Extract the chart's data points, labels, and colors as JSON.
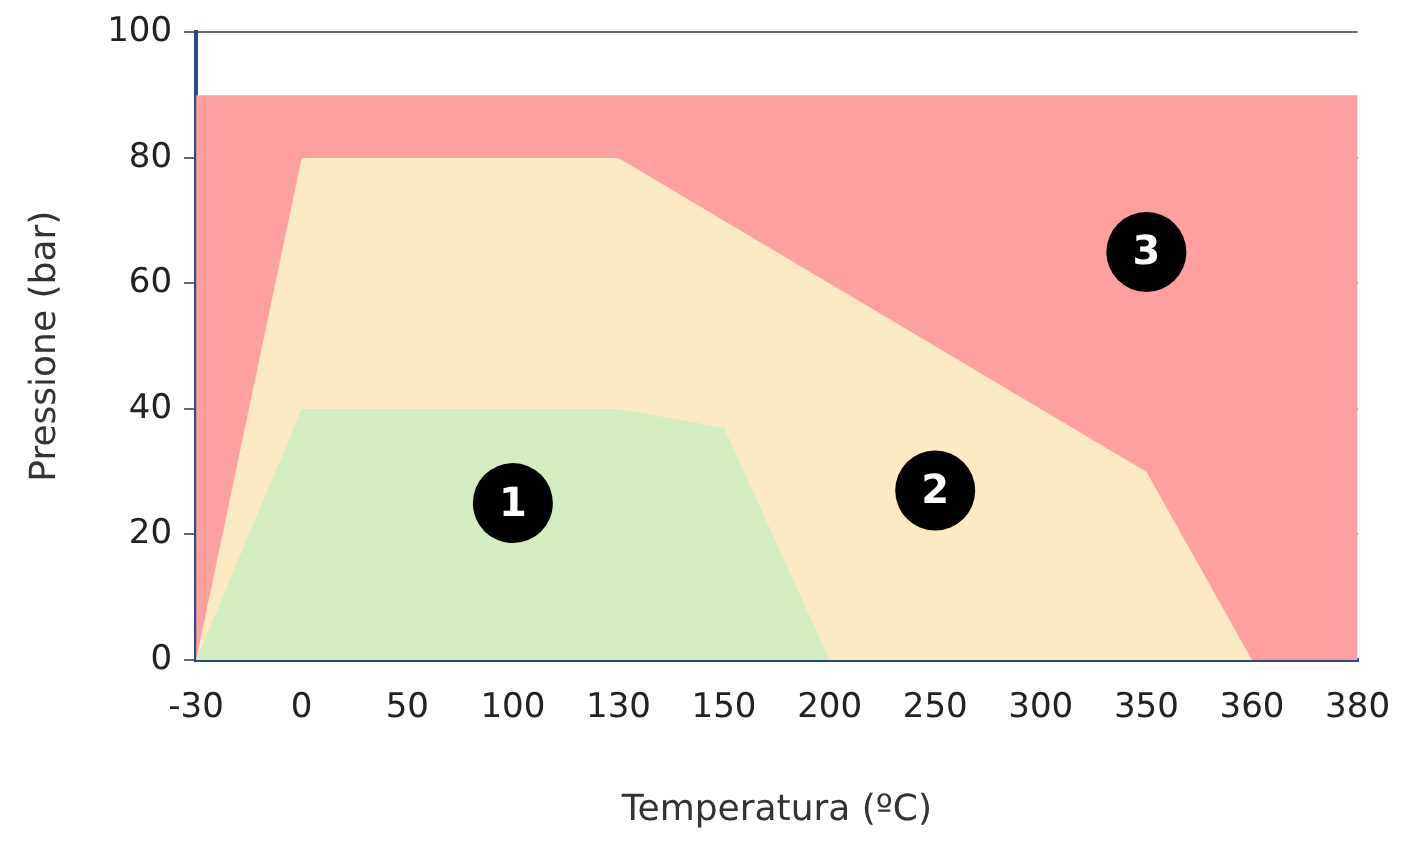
{
  "chart_data": {
    "type": "area",
    "xlabel": "Temperatura (ºC)",
    "ylabel": "Pressione (bar)",
    "categories": [
      "-30",
      "0",
      "50",
      "100",
      "130",
      "150",
      "200",
      "250",
      "300",
      "350",
      "360",
      "380"
    ],
    "series": [
      {
        "color": "#ffa0a0",
        "values": [
          90,
          90,
          90,
          90,
          90,
          90,
          90,
          90,
          90,
          90,
          90,
          90
        ]
      },
      {
        "color": "#fcebc2",
        "values": [
          0,
          80,
          80,
          80,
          80,
          70,
          60,
          50,
          40,
          30,
          0,
          0
        ]
      },
      {
        "color": "#d3ecc0",
        "values": [
          0,
          40,
          40,
          40,
          40,
          37,
          0,
          0,
          0,
          0,
          0,
          0
        ]
      }
    ],
    "ylim": [
      0,
      100
    ],
    "yticks": [
      0,
      20,
      40,
      60,
      80,
      100
    ],
    "grid": "y",
    "legend": false,
    "annotations": [
      {
        "text": "1",
        "x": "100",
        "y": 25
      },
      {
        "text": "2",
        "x": "250",
        "y": 27
      },
      {
        "text": "3",
        "x": "350",
        "y": 65
      }
    ]
  }
}
